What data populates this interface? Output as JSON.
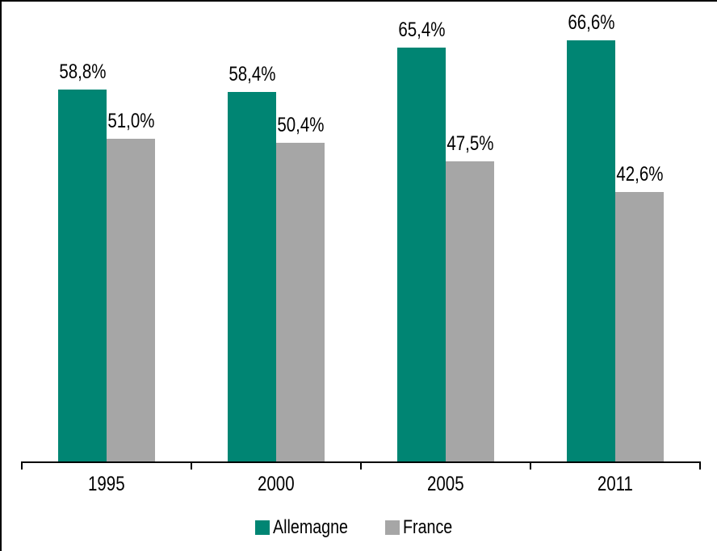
{
  "chart_data": {
    "type": "bar",
    "title": "",
    "xlabel": "",
    "ylabel": "",
    "categories": [
      "1995",
      "2000",
      "2005",
      "2011"
    ],
    "series": [
      {
        "name": "Allemagne",
        "color": "#008573",
        "values": [
          58.8,
          58.4,
          65.4,
          66.6
        ],
        "labels": [
          "58,8%",
          "58,4%",
          "65,4%",
          "66,6%"
        ]
      },
      {
        "name": "France",
        "color": "#A6A6A6",
        "values": [
          51.0,
          50.4,
          47.5,
          42.6
        ],
        "labels": [
          "51,0%",
          "50,4%",
          "47,5%",
          "42,6%"
        ]
      }
    ],
    "ylim": [
      0,
      72.8
    ],
    "grid": false,
    "legend_position": "bottom",
    "value_format": "percent-comma-decimal",
    "axis_color": "#000000",
    "label_color": "#000000",
    "background": "#FFFFFF"
  }
}
